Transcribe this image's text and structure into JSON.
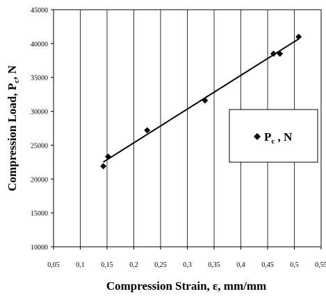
{
  "chart_data": {
    "type": "scatter",
    "xlabel": "Compression Strain,  ε, mm/mm",
    "ylabel_main": "Compression Load,  P",
    "ylabel_sub": "c",
    "ylabel_tail": ", N",
    "xlim": [
      0.05,
      0.55
    ],
    "ylim": [
      10000,
      45000
    ],
    "xticks": [
      "0,05",
      "0,1",
      "0,15",
      "0,2",
      "0,25",
      "0,3",
      "0,35",
      "0,4",
      "0,45",
      "0,5",
      "0,55"
    ],
    "yticks": [
      "10000",
      "15000",
      "20000",
      "25000",
      "30000",
      "35000",
      "40000",
      "45000"
    ],
    "grid": "vertical",
    "marker": "diamond",
    "trendline": "polynomial",
    "legend_position": "right",
    "series": [
      {
        "name_main": "P",
        "name_sub": "c",
        "name_tail": " , N",
        "x": [
          0.143,
          0.152,
          0.225,
          0.333,
          0.461,
          0.473,
          0.508
        ],
        "y": [
          21900,
          23300,
          27200,
          31600,
          38500,
          38500,
          41000
        ]
      }
    ],
    "colors": {
      "marker": "#000000",
      "line": "#000000",
      "grid": "#000000"
    }
  }
}
